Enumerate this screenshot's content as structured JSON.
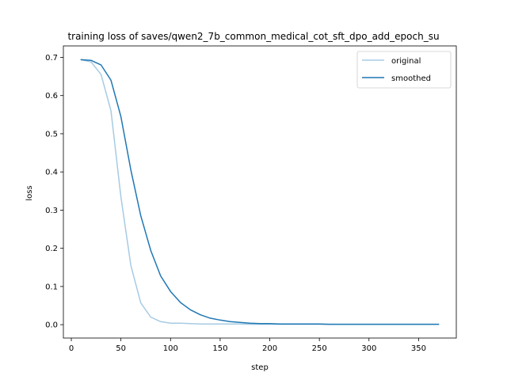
{
  "chart_data": {
    "type": "line",
    "title": "training loss of saves/qwen2_7b_common_medical_cot_sft_dpo_add_epoch_su",
    "xlabel": "step",
    "ylabel": "loss",
    "xlim": [
      -8,
      388
    ],
    "ylim": [
      -0.035,
      0.73
    ],
    "xticks": [
      0,
      50,
      100,
      150,
      200,
      250,
      300,
      350
    ],
    "yticks": [
      0.0,
      0.1,
      0.2,
      0.3,
      0.4,
      0.5,
      0.6,
      0.7
    ],
    "xtick_labels": [
      "0",
      "50",
      "100",
      "150",
      "200",
      "250",
      "300",
      "350"
    ],
    "ytick_labels": [
      "0.0",
      "0.1",
      "0.2",
      "0.3",
      "0.4",
      "0.5",
      "0.6",
      "0.7"
    ],
    "grid": false,
    "legend_position": "top-right",
    "series": [
      {
        "name": "original",
        "color": "#a6cbe3",
        "x": [
          10,
          20,
          30,
          40,
          50,
          60,
          70,
          80,
          90,
          100,
          110,
          120,
          130,
          140,
          150,
          160,
          170,
          180,
          190,
          200,
          210,
          220,
          230,
          240,
          250,
          260,
          270,
          280,
          290,
          300,
          310,
          320,
          330,
          340,
          350,
          360,
          370
        ],
        "y": [
          0.694,
          0.688,
          0.655,
          0.56,
          0.335,
          0.155,
          0.057,
          0.02,
          0.008,
          0.004,
          0.004,
          0.003,
          0.002,
          0.002,
          0.002,
          0.002,
          0.002,
          0.001,
          0.001,
          0.001,
          0.001,
          0.001,
          0.001,
          0.001,
          0.001,
          0.001,
          0.001,
          0.001,
          0.001,
          0.001,
          0.001,
          0.001,
          0.001,
          0.001,
          0.001,
          0.001,
          0.001
        ]
      },
      {
        "name": "smoothed",
        "color": "#1f77b4",
        "x": [
          10,
          20,
          30,
          40,
          50,
          60,
          70,
          80,
          90,
          100,
          110,
          120,
          130,
          140,
          150,
          160,
          170,
          180,
          190,
          200,
          210,
          220,
          230,
          240,
          250,
          260,
          270,
          280,
          290,
          300,
          310,
          320,
          330,
          340,
          350,
          360,
          370
        ],
        "y": [
          0.694,
          0.692,
          0.68,
          0.64,
          0.545,
          0.405,
          0.285,
          0.195,
          0.128,
          0.087,
          0.058,
          0.039,
          0.026,
          0.017,
          0.012,
          0.008,
          0.006,
          0.004,
          0.003,
          0.003,
          0.002,
          0.002,
          0.002,
          0.002,
          0.002,
          0.001,
          0.001,
          0.001,
          0.001,
          0.001,
          0.001,
          0.001,
          0.001,
          0.001,
          0.001,
          0.001,
          0.001
        ]
      }
    ]
  }
}
